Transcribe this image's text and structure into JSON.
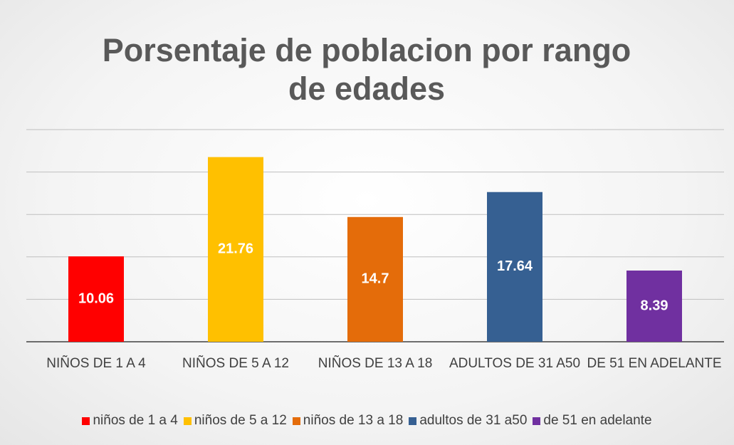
{
  "chart_data": {
    "type": "bar",
    "title": "Porsentaje de poblacion por rango de edades",
    "categories": [
      "NIÑOS DE 1 A 4",
      "NIÑOS DE 5 A 12",
      "NIÑOS DE 13 A 18",
      "ADULTOS DE 31 A50",
      "DE 51 EN ADELANTE"
    ],
    "series": [
      {
        "name": "niños de 1 a 4",
        "color": "#ff0000",
        "values": [
          10.06,
          null,
          null,
          null,
          null
        ]
      },
      {
        "name": "niños de 5 a 12",
        "color": "#ffc000",
        "values": [
          null,
          21.76,
          null,
          null,
          null
        ]
      },
      {
        "name": "niños de 13 a 18",
        "color": "#e46c0a",
        "values": [
          null,
          null,
          14.7,
          null,
          null
        ]
      },
      {
        "name": "adultos de 31 a50",
        "color": "#366092",
        "values": [
          null,
          null,
          null,
          17.64,
          null
        ]
      },
      {
        "name": "de 51 en adelante",
        "color": "#7030a0",
        "values": [
          null,
          null,
          null,
          null,
          8.39
        ]
      }
    ],
    "ylim": [
      0,
      25
    ],
    "yticks": [
      0,
      5,
      10,
      15,
      20,
      25
    ],
    "grid": true,
    "legend": "bottom"
  }
}
